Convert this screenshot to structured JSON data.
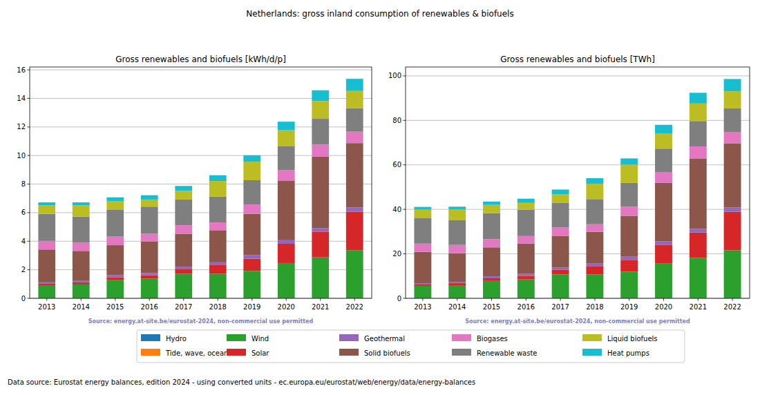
{
  "title": "Netherlands: gross inland consumption of renewables & biofuels",
  "footer": "Data source: Eurostat energy balances, edition 2024 - using converted units - ec.europa.eu/eurostat/web/energy/data/energy-balances",
  "chart_data": [
    {
      "type": "bar",
      "stacked": true,
      "grid": true,
      "legend": "bottom",
      "title": "Gross renewables and biofuels [kWh/d/p]",
      "annotations": [
        "Source: energy.at-site.be/eurostat-2024, non-commercial use permitted"
      ],
      "categories": [
        "2013",
        "2014",
        "2015",
        "2016",
        "2017",
        "2018",
        "2019",
        "2020",
        "2021",
        "2022"
      ],
      "ylim": [
        0,
        16.2
      ],
      "yticks": [
        0,
        2,
        4,
        6,
        8,
        10,
        12,
        14,
        16
      ],
      "series": [
        {
          "name": "Hydro",
          "color": "#1f77b4",
          "values": [
            0.02,
            0.02,
            0.02,
            0.02,
            0.02,
            0.02,
            0.02,
            0.02,
            0.02,
            0.02
          ]
        },
        {
          "name": "Tide, wave, ocean",
          "color": "#ff7f0e",
          "values": [
            0,
            0,
            0,
            0,
            0,
            0,
            0,
            0,
            0,
            0
          ]
        },
        {
          "name": "Wind",
          "color": "#2ca02c",
          "values": [
            0.9,
            0.95,
            1.25,
            1.35,
            1.7,
            1.7,
            1.9,
            2.45,
            2.85,
            3.35
          ]
        },
        {
          "name": "Solar",
          "color": "#d62728",
          "values": [
            0.1,
            0.15,
            0.2,
            0.25,
            0.35,
            0.6,
            0.85,
            1.35,
            1.8,
            2.7
          ]
        },
        {
          "name": "Geothermal",
          "color": "#9467bd",
          "values": [
            0.1,
            0.1,
            0.15,
            0.15,
            0.15,
            0.2,
            0.25,
            0.25,
            0.25,
            0.3
          ]
        },
        {
          "name": "Solid biofuels",
          "color": "#8c564b",
          "values": [
            2.3,
            2.1,
            2.1,
            2.2,
            2.3,
            2.25,
            2.9,
            4.15,
            5.0,
            4.5
          ]
        },
        {
          "name": "Biogases",
          "color": "#e377c2",
          "values": [
            0.6,
            0.6,
            0.6,
            0.55,
            0.6,
            0.55,
            0.65,
            0.75,
            0.85,
            0.8
          ]
        },
        {
          "name": "Renewable waste",
          "color": "#7f7f7f",
          "values": [
            1.9,
            1.8,
            1.9,
            1.9,
            1.8,
            1.8,
            1.7,
            1.7,
            1.8,
            1.65
          ]
        },
        {
          "name": "Liquid biofuels",
          "color": "#bcbd22",
          "values": [
            0.6,
            0.8,
            0.6,
            0.5,
            0.6,
            1.1,
            1.3,
            1.1,
            1.25,
            1.2
          ]
        },
        {
          "name": "Heat pumps",
          "color": "#17becf",
          "values": [
            0.2,
            0.2,
            0.25,
            0.3,
            0.35,
            0.4,
            0.45,
            0.6,
            0.75,
            0.85
          ]
        }
      ]
    },
    {
      "type": "bar",
      "stacked": true,
      "grid": true,
      "title": "Gross renewables and biofuels [TWh]",
      "annotations": [
        "Source: energy.at-site.be/eurostat-2024, non-commercial use permitted"
      ],
      "categories": [
        "2013",
        "2014",
        "2015",
        "2016",
        "2017",
        "2018",
        "2019",
        "2020",
        "2021",
        "2022"
      ],
      "ylim": [
        0,
        104
      ],
      "yticks": [
        0,
        20,
        40,
        60,
        80,
        100
      ],
      "series": [
        {
          "name": "Hydro",
          "color": "#1f77b4",
          "values": [
            0.1,
            0.1,
            0.1,
            0.1,
            0.1,
            0.1,
            0.1,
            0.1,
            0.1,
            0.1
          ]
        },
        {
          "name": "Tide, wave, ocean",
          "color": "#ff7f0e",
          "values": [
            0,
            0,
            0,
            0,
            0,
            0,
            0,
            0,
            0,
            0
          ]
        },
        {
          "name": "Wind",
          "color": "#2ca02c",
          "values": [
            5.5,
            5.8,
            7.7,
            8.4,
            10.6,
            10.6,
            11.9,
            15.5,
            18.1,
            21.5
          ]
        },
        {
          "name": "Solar",
          "color": "#d62728",
          "values": [
            0.6,
            0.9,
            1.2,
            1.6,
            2.2,
            3.8,
            5.3,
            8.5,
            11.4,
            17.3
          ]
        },
        {
          "name": "Geothermal",
          "color": "#9467bd",
          "values": [
            0.6,
            0.6,
            0.9,
            0.9,
            0.9,
            1.3,
            1.6,
            1.6,
            1.6,
            1.9
          ]
        },
        {
          "name": "Solid biofuels",
          "color": "#8c564b",
          "values": [
            14.1,
            12.9,
            13.0,
            13.6,
            14.3,
            14.1,
            18.2,
            26.2,
            31.7,
            28.9
          ]
        },
        {
          "name": "Biogases",
          "color": "#e377c2",
          "values": [
            3.7,
            3.7,
            3.7,
            3.4,
            3.7,
            3.4,
            4.1,
            4.7,
            5.4,
            5.1
          ]
        },
        {
          "name": "Renewable waste",
          "color": "#7f7f7f",
          "values": [
            11.6,
            11.1,
            11.7,
            11.8,
            11.2,
            11.3,
            10.7,
            10.7,
            11.4,
            10.6
          ]
        },
        {
          "name": "Liquid biofuels",
          "color": "#bcbd22",
          "values": [
            3.7,
            4.9,
            3.7,
            3.1,
            3.7,
            6.9,
            8.2,
            6.9,
            7.9,
            7.7
          ]
        },
        {
          "name": "Heat pumps",
          "color": "#17becf",
          "values": [
            1.2,
            1.2,
            1.5,
            1.9,
            2.2,
            2.5,
            2.8,
            3.8,
            4.8,
            5.5
          ]
        }
      ]
    }
  ]
}
